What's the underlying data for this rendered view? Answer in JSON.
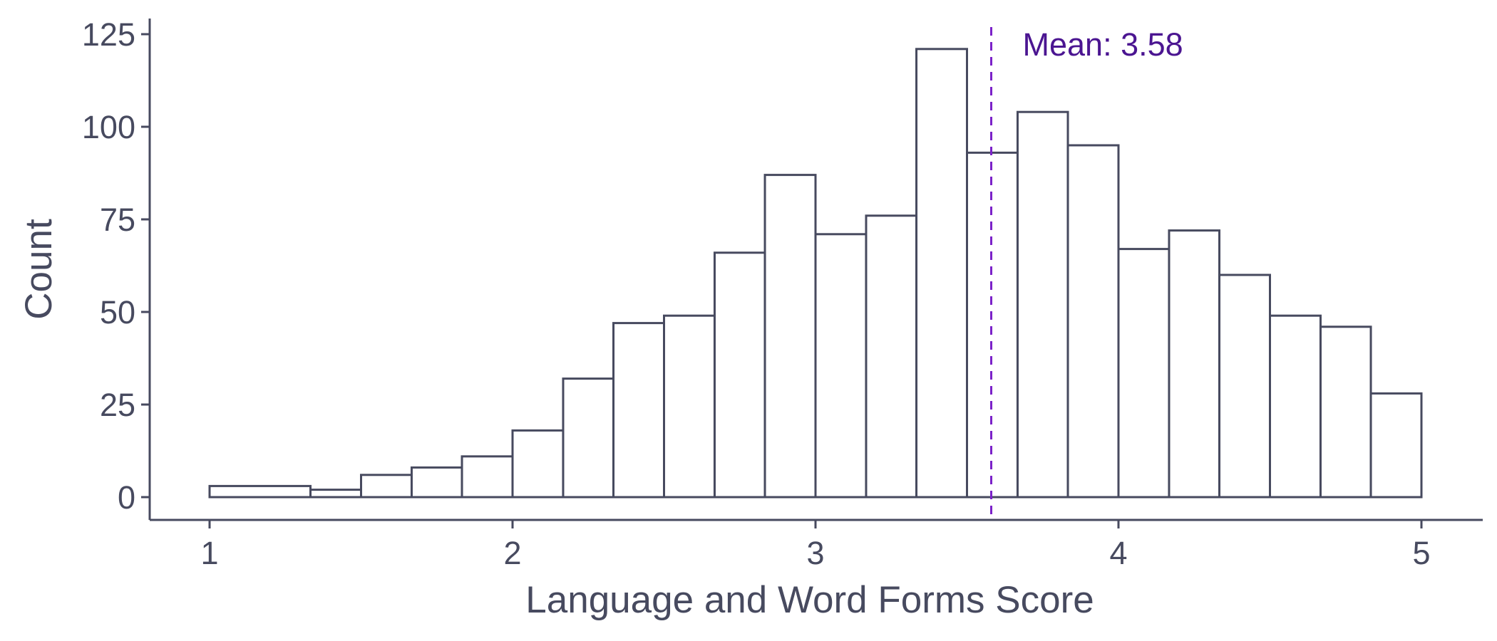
{
  "chart_data": {
    "type": "bar",
    "subtype": "histogram",
    "xlabel": "Language and Word Forms Score",
    "ylabel": "Count",
    "xlim": [
      0.8,
      5.2
    ],
    "ylim": [
      -6,
      128
    ],
    "x_ticks": [
      1,
      2,
      3,
      4,
      5
    ],
    "y_ticks": [
      0,
      25,
      50,
      75,
      100,
      125
    ],
    "grid": false,
    "bins": [
      {
        "x0": 1.0,
        "x1": 1.333,
        "count": 3
      },
      {
        "x0": 1.333,
        "x1": 1.5,
        "count": 2
      },
      {
        "x0": 1.5,
        "x1": 1.667,
        "count": 6
      },
      {
        "x0": 1.667,
        "x1": 1.833,
        "count": 8
      },
      {
        "x0": 1.833,
        "x1": 2.0,
        "count": 11
      },
      {
        "x0": 2.0,
        "x1": 2.167,
        "count": 18
      },
      {
        "x0": 2.167,
        "x1": 2.333,
        "count": 32
      },
      {
        "x0": 2.333,
        "x1": 2.5,
        "count": 47
      },
      {
        "x0": 2.5,
        "x1": 2.667,
        "count": 49
      },
      {
        "x0": 2.667,
        "x1": 2.833,
        "count": 66
      },
      {
        "x0": 2.833,
        "x1": 3.0,
        "count": 87
      },
      {
        "x0": 3.0,
        "x1": 3.167,
        "count": 71
      },
      {
        "x0": 3.167,
        "x1": 3.333,
        "count": 76
      },
      {
        "x0": 3.333,
        "x1": 3.5,
        "count": 121
      },
      {
        "x0": 3.5,
        "x1": 3.667,
        "count": 93
      },
      {
        "x0": 3.667,
        "x1": 3.833,
        "count": 104
      },
      {
        "x0": 3.833,
        "x1": 4.0,
        "count": 95
      },
      {
        "x0": 4.0,
        "x1": 4.167,
        "count": 67
      },
      {
        "x0": 4.167,
        "x1": 4.333,
        "count": 72
      },
      {
        "x0": 4.333,
        "x1": 4.5,
        "count": 60
      },
      {
        "x0": 4.5,
        "x1": 4.667,
        "count": 49
      },
      {
        "x0": 4.667,
        "x1": 4.833,
        "count": 46
      },
      {
        "x0": 4.833,
        "x1": 5.0,
        "count": 28
      }
    ],
    "annotations": [
      {
        "type": "vline",
        "x": 3.58,
        "label": "Mean: 3.58",
        "color": "#7b22c9",
        "label_color": "#4b1591",
        "style": "dashed"
      }
    ],
    "colors": {
      "axis": "#474a5f",
      "bar_fill": "#ffffff",
      "bar_stroke": "#474a5f"
    }
  }
}
